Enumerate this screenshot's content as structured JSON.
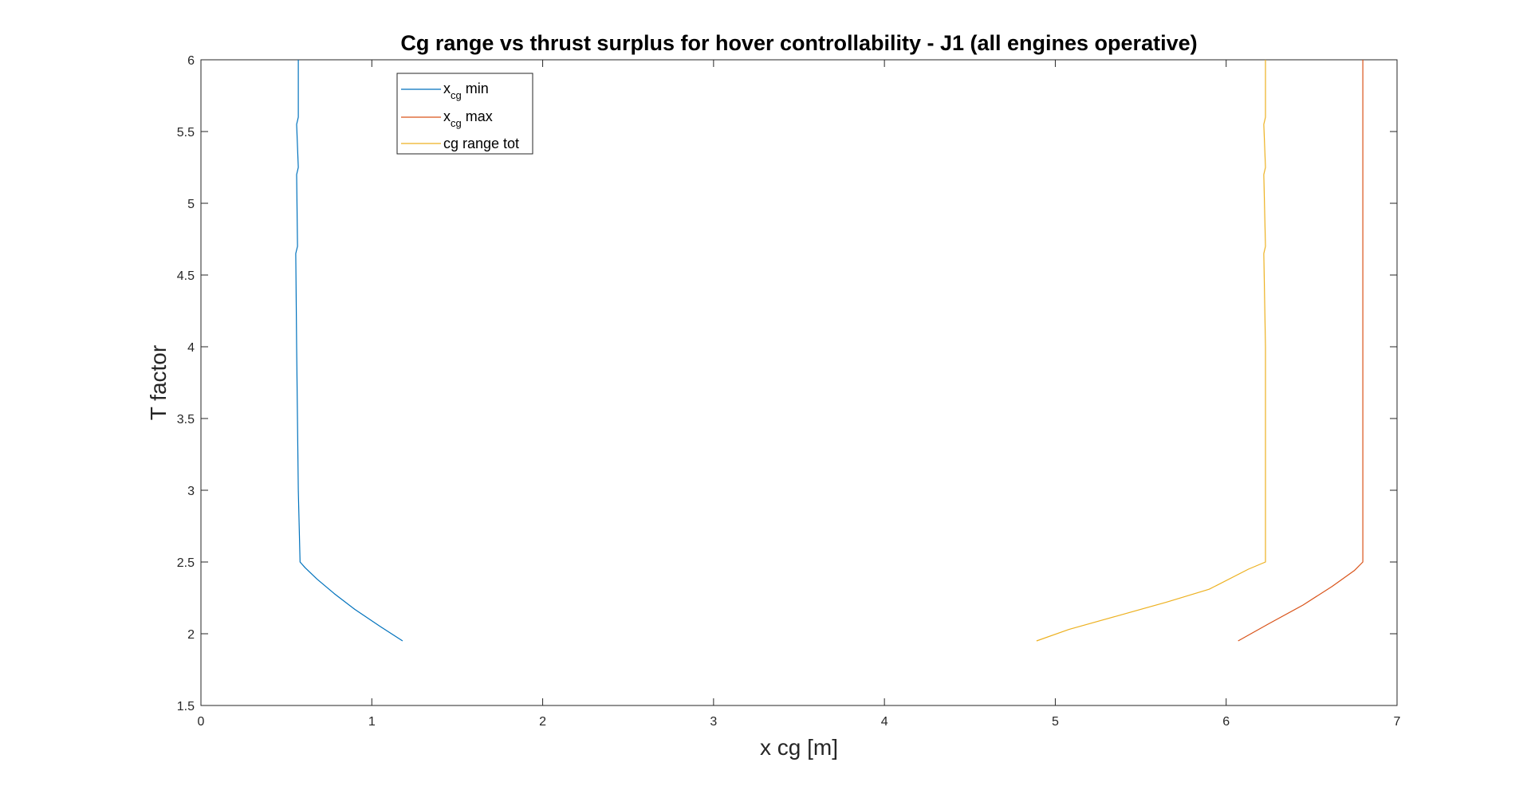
{
  "chart_data": {
    "type": "line",
    "title": "Cg range vs thrust surplus for hover controllability - J1 (all engines operative)",
    "xlabel": "x cg [m]",
    "ylabel": "T factor",
    "xlim": [
      0,
      7
    ],
    "ylim": [
      1.5,
      6
    ],
    "xticks": [
      "0",
      "1",
      "2",
      "3",
      "4",
      "5",
      "6",
      "7"
    ],
    "yticks": [
      "1.5",
      "2",
      "2.5",
      "3",
      "3.5",
      "4",
      "4.5",
      "5",
      "5.5",
      "6"
    ],
    "grid": false,
    "legend_position": "top-left",
    "legend": {
      "min_base": "x",
      "min_sub": "cg",
      "min_rest": " min",
      "max_base": "x",
      "max_sub": "cg",
      "max_rest": " max",
      "tot": "cg range tot"
    },
    "series": [
      {
        "color": "#0072BD",
        "points": [
          [
            1.18,
            1.95
          ],
          [
            1.05,
            2.05
          ],
          [
            0.9,
            2.17
          ],
          [
            0.78,
            2.28
          ],
          [
            0.68,
            2.38
          ],
          [
            0.61,
            2.46
          ],
          [
            0.58,
            2.5
          ],
          [
            0.57,
            3.0
          ],
          [
            0.56,
            4.0
          ],
          [
            0.555,
            4.65
          ],
          [
            0.565,
            4.7
          ],
          [
            0.56,
            5.2
          ],
          [
            0.57,
            5.25
          ],
          [
            0.56,
            5.55
          ],
          [
            0.57,
            5.6
          ],
          [
            0.57,
            6.0
          ]
        ]
      },
      {
        "color": "#D95319",
        "points": [
          [
            6.07,
            1.95
          ],
          [
            6.25,
            2.07
          ],
          [
            6.45,
            2.2
          ],
          [
            6.62,
            2.33
          ],
          [
            6.75,
            2.44
          ],
          [
            6.8,
            2.5
          ],
          [
            6.8,
            3.0
          ],
          [
            6.8,
            4.0
          ],
          [
            6.8,
            5.0
          ],
          [
            6.8,
            6.0
          ]
        ]
      },
      {
        "color": "#EDB120",
        "points": [
          [
            4.89,
            1.95
          ],
          [
            5.08,
            2.03
          ],
          [
            5.35,
            2.12
          ],
          [
            5.65,
            2.22
          ],
          [
            5.9,
            2.31
          ],
          [
            6.13,
            2.45
          ],
          [
            6.23,
            2.5
          ],
          [
            6.23,
            3.0
          ],
          [
            6.23,
            4.0
          ],
          [
            6.22,
            4.65
          ],
          [
            6.23,
            4.7
          ],
          [
            6.22,
            5.2
          ],
          [
            6.23,
            5.25
          ],
          [
            6.22,
            5.55
          ],
          [
            6.23,
            5.6
          ],
          [
            6.23,
            6.0
          ]
        ]
      }
    ]
  }
}
